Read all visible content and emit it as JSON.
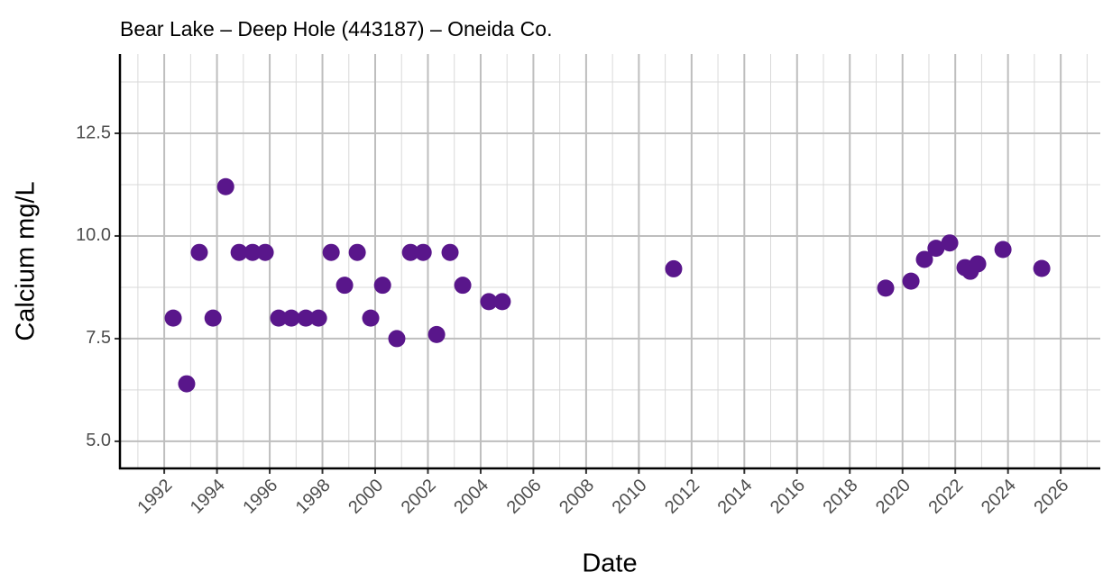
{
  "chart_data": {
    "type": "scatter",
    "title": "Bear Lake – Deep Hole (443187) – Oneida Co.",
    "x_label": "Date",
    "y_label": "Calcium mg/L",
    "color": "#59168b",
    "grid": true,
    "xlim": [
      1990.32,
      2027.5
    ],
    "ylim": [
      4.34,
      14.43
    ],
    "xticks": [
      1992,
      1994,
      1996,
      1998,
      2000,
      2002,
      2004,
      2006,
      2008,
      2010,
      2012,
      2014,
      2016,
      2018,
      2020,
      2022,
      2024,
      2026
    ],
    "xminorticks": [
      1991,
      1993,
      1995,
      1997,
      1999,
      2001,
      2003,
      2005,
      2007,
      2009,
      2011,
      2013,
      2015,
      2017,
      2019,
      2021,
      2023,
      2025,
      2027
    ],
    "yticks": [
      {
        "value": 5,
        "label": "5.0"
      },
      7.5,
      {
        "value": 10,
        "label": "10.0"
      },
      12.5
    ],
    "yminorticks": [
      6.25,
      8.75,
      11.25,
      13.75
    ],
    "x": [
      1992.34,
      1992.85,
      1993.33,
      1993.85,
      1994.33,
      1994.84,
      1995.35,
      1995.83,
      1996.34,
      1996.82,
      1997.37,
      1997.85,
      1998.33,
      1998.84,
      1999.32,
      1999.83,
      2000.28,
      2000.82,
      2001.34,
      2001.82,
      2002.33,
      2002.84,
      2003.32,
      2004.31,
      2004.82,
      2011.32,
      2019.36,
      2020.32,
      2020.83,
      2021.27,
      2021.79,
      2022.37,
      2022.57,
      2022.85,
      2023.81,
      2025.28
    ],
    "values": [
      8.0,
      6.4,
      9.6,
      8.0,
      11.2,
      9.6,
      9.6,
      9.6,
      8.0,
      8.0,
      8.0,
      8.0,
      9.6,
      8.8,
      9.6,
      8.0,
      8.8,
      7.5,
      9.6,
      9.6,
      7.6,
      9.6,
      8.8,
      8.4,
      8.4,
      9.2,
      8.73,
      8.9,
      9.43,
      9.7,
      9.83,
      9.23,
      9.14,
      9.32,
      9.67,
      9.21
    ]
  }
}
